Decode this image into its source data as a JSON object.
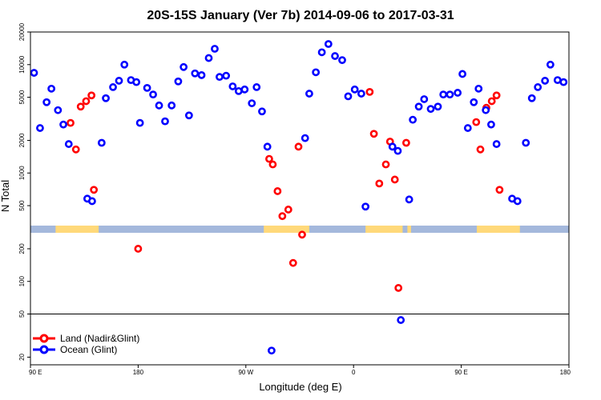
{
  "chart_data": {
    "type": "scatter",
    "title": "20S-15S January (Ver 7b)   2014-09-06 to 2017-03-31",
    "xlabel": "Longitude (deg E)",
    "ylabel": "N Total",
    "yscale": "log",
    "xlim": [
      90,
      540
    ],
    "ylim": [
      17,
      20000
    ],
    "x_ticks": [
      {
        "value": 90,
        "label": "90 E"
      },
      {
        "value": 180,
        "label": "180"
      },
      {
        "value": 270,
        "label": "90 W"
      },
      {
        "value": 360,
        "label": "0"
      },
      {
        "value": 450,
        "label": "90 E"
      },
      {
        "value": 540,
        "label": "180"
      }
    ],
    "y_ticks": [
      {
        "value": 20,
        "label": "20"
      },
      {
        "value": 50,
        "label": "50"
      },
      {
        "value": 100,
        "label": "100"
      },
      {
        "value": 200,
        "label": "200"
      },
      {
        "value": 500,
        "label": "500"
      },
      {
        "value": 1000,
        "label": "1000"
      },
      {
        "value": 2000,
        "label": "2000"
      },
      {
        "value": 5000,
        "label": "5000"
      },
      {
        "value": 10000,
        "label": "10000"
      },
      {
        "value": 20000,
        "label": "20000"
      }
    ],
    "reference_line_y": 50,
    "legend_position": "bottom-left",
    "colors": {
      "land": "#ff0000",
      "ocean": "#0000ff",
      "land_mask": "#ffd97a",
      "ocean_mask": "#a4b8dc"
    },
    "series": [
      {
        "name": "Land (Nadir&Glint)",
        "color": "#ff0000",
        "points": [
          [
            123.5,
            2900
          ],
          [
            128,
            1650
          ],
          [
            132,
            4100
          ],
          [
            136.5,
            4600
          ],
          [
            141,
            5200
          ],
          [
            143,
            700
          ],
          [
            180,
            200
          ],
          [
            289.5,
            1350
          ],
          [
            292.5,
            1200
          ],
          [
            296.5,
            680
          ],
          [
            300.5,
            400
          ],
          [
            305.5,
            460
          ],
          [
            309.5,
            148
          ],
          [
            314,
            1750
          ],
          [
            317,
            270
          ],
          [
            373.5,
            5600
          ],
          [
            377,
            2300
          ],
          [
            381.5,
            800
          ],
          [
            387,
            1200
          ],
          [
            390.5,
            1950
          ],
          [
            394.5,
            870
          ],
          [
            397.5,
            87
          ],
          [
            404,
            1900
          ],
          [
            462.5,
            2950
          ],
          [
            466,
            1650
          ],
          [
            471,
            4000
          ],
          [
            475.5,
            4600
          ],
          [
            479.5,
            5200
          ],
          [
            482,
            700
          ]
        ]
      },
      {
        "name": "Ocean (Glint)",
        "color": "#0000ff",
        "points": [
          [
            93,
            8400
          ],
          [
            98,
            2600
          ],
          [
            103.5,
            4500
          ],
          [
            107.5,
            6000
          ],
          [
            113,
            3800
          ],
          [
            117.5,
            2800
          ],
          [
            122,
            1850
          ],
          [
            137.5,
            580
          ],
          [
            141.5,
            550
          ],
          [
            149.5,
            1900
          ],
          [
            153,
            4900
          ],
          [
            159,
            6200
          ],
          [
            164,
            7100
          ],
          [
            168.5,
            10000
          ],
          [
            174,
            7200
          ],
          [
            178.5,
            6900
          ],
          [
            181.5,
            2900
          ],
          [
            187.5,
            6100
          ],
          [
            192.5,
            5300
          ],
          [
            197.5,
            4200
          ],
          [
            202.5,
            3000
          ],
          [
            208,
            4200
          ],
          [
            213.5,
            7000
          ],
          [
            218,
            9500
          ],
          [
            222.5,
            3400
          ],
          [
            227.5,
            8300
          ],
          [
            233,
            8000
          ],
          [
            239,
            11500
          ],
          [
            244,
            14000
          ],
          [
            248,
            7700
          ],
          [
            253.5,
            7900
          ],
          [
            259,
            6300
          ],
          [
            264,
            5700
          ],
          [
            269,
            5900
          ],
          [
            275,
            4400
          ],
          [
            279,
            6200
          ],
          [
            283.5,
            3700
          ],
          [
            288,
            1750
          ],
          [
            291.5,
            23
          ],
          [
            319.5,
            2100
          ],
          [
            323,
            5400
          ],
          [
            328.5,
            8500
          ],
          [
            333.5,
            13000
          ],
          [
            339,
            15500
          ],
          [
            344.5,
            12000
          ],
          [
            350.5,
            11000
          ],
          [
            355.5,
            5100
          ],
          [
            361,
            5900
          ],
          [
            366.5,
            5400
          ],
          [
            370,
            490
          ],
          [
            392.5,
            1750
          ],
          [
            397,
            1600
          ],
          [
            399.5,
            44
          ],
          [
            406.5,
            570
          ],
          [
            409.5,
            3100
          ],
          [
            414.5,
            4100
          ],
          [
            419,
            4800
          ],
          [
            424.5,
            3900
          ],
          [
            430.5,
            4100
          ],
          [
            435,
            5300
          ],
          [
            440.5,
            5300
          ],
          [
            447,
            5500
          ],
          [
            451,
            8200
          ],
          [
            455.5,
            2600
          ],
          [
            460.5,
            4500
          ],
          [
            464.5,
            6000
          ],
          [
            470.5,
            3800
          ],
          [
            475,
            2800
          ],
          [
            479.5,
            1850
          ],
          [
            492.5,
            580
          ],
          [
            497,
            550
          ],
          [
            504,
            1900
          ],
          [
            509,
            4900
          ],
          [
            514,
            6200
          ],
          [
            520,
            7100
          ],
          [
            524.5,
            10000
          ],
          [
            530.5,
            7200
          ],
          [
            535.5,
            6900
          ]
        ]
      }
    ]
  }
}
